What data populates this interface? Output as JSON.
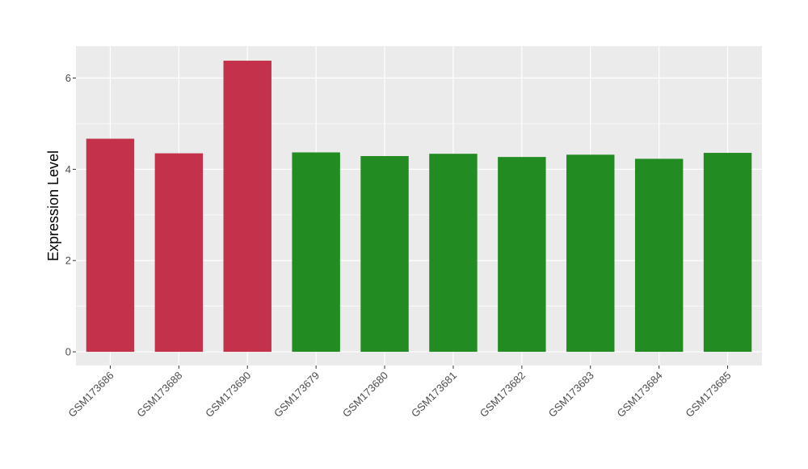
{
  "chart_data": {
    "type": "bar",
    "title": "",
    "xlabel": "",
    "ylabel": "Expression Level",
    "categories": [
      "GSM173686",
      "GSM173688",
      "GSM173690",
      "GSM173679",
      "GSM173680",
      "GSM173681",
      "GSM173682",
      "GSM173683",
      "GSM173684",
      "GSM173685"
    ],
    "values": [
      4.67,
      4.35,
      6.38,
      4.37,
      4.29,
      4.34,
      4.27,
      4.32,
      4.23,
      4.36
    ],
    "bar_colors": [
      "#c3324a",
      "#c3324a",
      "#c3324a",
      "#228b22",
      "#228b22",
      "#228b22",
      "#228b22",
      "#228b22",
      "#228b22",
      "#228b22"
    ],
    "yticks": [
      0,
      2,
      4,
      6
    ],
    "ylim": [
      -0.3,
      6.7
    ],
    "grid": true,
    "legend": "none",
    "panel_color": "#ebebeb",
    "grid_color": "#ffffff"
  }
}
